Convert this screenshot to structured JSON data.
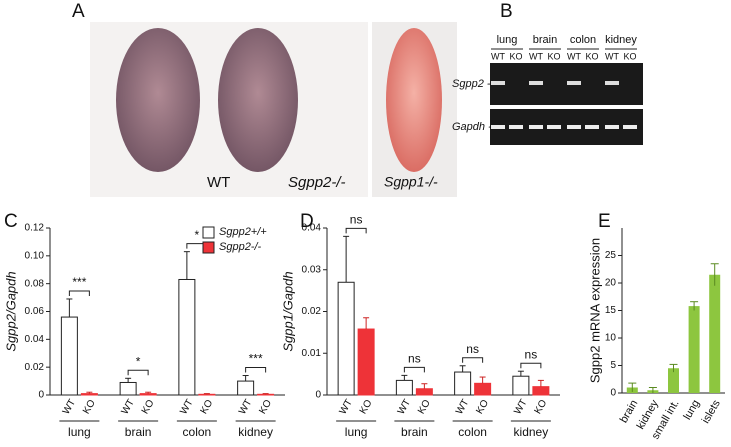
{
  "figure": {
    "panels": [
      "A",
      "B",
      "C",
      "D",
      "E"
    ],
    "photo_labels": [
      "WT",
      "Sgpp2-/-",
      "Sgpp1-/-"
    ],
    "gel": {
      "tissues": [
        "lung",
        "brain",
        "colon",
        "kidney"
      ],
      "lanes": [
        "WT",
        "KO"
      ],
      "genes": [
        "Sgpp2 -",
        "Gapdh -"
      ]
    }
  },
  "chart_data": [
    {
      "type": "grouped-bar",
      "y_label": "Sgpp2/Gapdh",
      "categories": [
        "lung",
        "brain",
        "colon",
        "kidney"
      ],
      "group_labels": [
        "WT",
        "KO"
      ],
      "series": [
        {
          "name": "Sgpp2+/+",
          "color": "#ffffff",
          "values": [
            0.056,
            0.009,
            0.083,
            0.01
          ],
          "errors": [
            0.013,
            0.003,
            0.02,
            0.004
          ]
        },
        {
          "name": "Sgpp2-/-",
          "color": "#ee3338",
          "values": [
            0.001,
            0.001,
            0.0005,
            0.0005
          ],
          "errors": [
            0.001,
            0.001,
            0.0005,
            0.0005
          ]
        }
      ],
      "annotations": [
        "***",
        "*",
        "*",
        "***"
      ],
      "ylim": [
        0,
        0.12
      ],
      "yticks": [
        0,
        0.02,
        0.04,
        0.06,
        0.08,
        {
          "value": 0.1,
          "label": "0.10"
        },
        0.12
      ],
      "legend": "upper right"
    },
    {
      "type": "grouped-bar",
      "y_label": "Sgpp1/Gapdh",
      "categories": [
        "lung",
        "brain",
        "colon",
        "kidney"
      ],
      "group_labels": [
        "WT",
        "KO"
      ],
      "series": [
        {
          "color": "#ffffff",
          "values": [
            0.027,
            0.0035,
            0.0055,
            0.0045
          ],
          "errors": [
            0.011,
            0.0012,
            0.0015,
            0.0012
          ]
        },
        {
          "color": "#ee3338",
          "values": [
            0.0158,
            0.0015,
            0.0028,
            0.002
          ],
          "errors": [
            0.0027,
            0.0012,
            0.0015,
            0.0015
          ]
        }
      ],
      "annotations": [
        "ns",
        "ns",
        "ns",
        "ns"
      ],
      "ylim": [
        0,
        0.04
      ],
      "yticks": [
        0,
        0.01,
        0.02,
        0.03,
        0.04
      ]
    },
    {
      "type": "bar",
      "y_label": "Sgpp2 mRNA expression",
      "categories": [
        "brain",
        "kidney",
        "small int.",
        "lung",
        "islets"
      ],
      "values": [
        1.0,
        0.5,
        4.5,
        15.8,
        21.5
      ],
      "errors": [
        0.8,
        0.5,
        0.7,
        0.8,
        2.0
      ],
      "color": "#8dc63f",
      "ylim": [
        0,
        30
      ],
      "yticks": [
        0,
        5,
        10,
        15,
        20,
        25
      ]
    }
  ]
}
